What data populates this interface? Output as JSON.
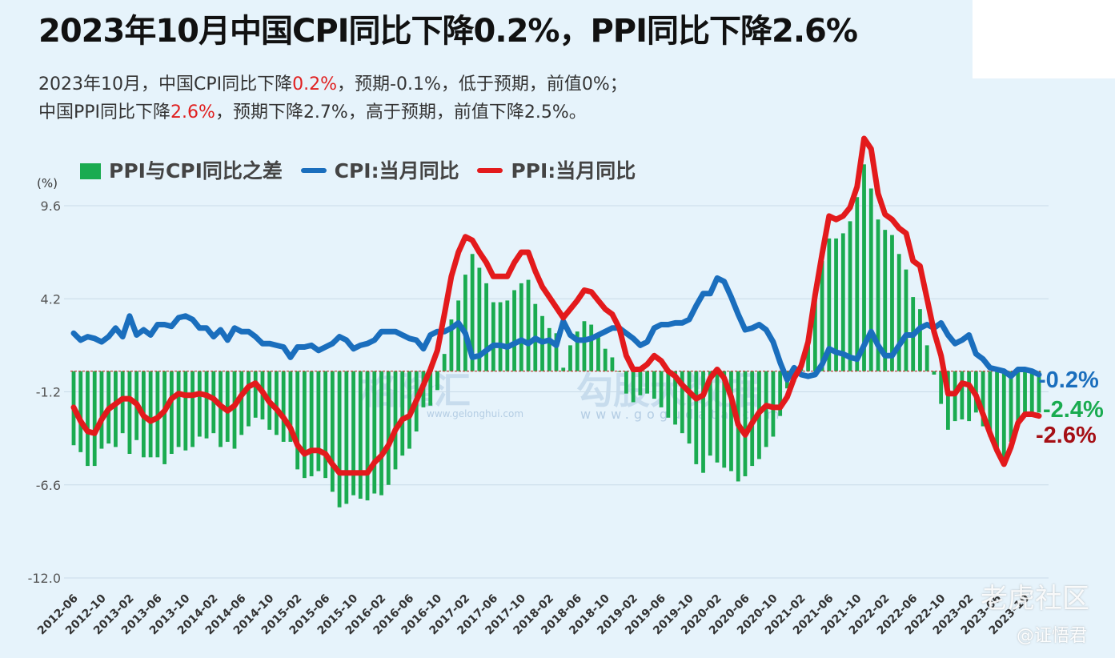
{
  "header": {
    "title": "2023年10月中国CPI同比下降0.2%，PPI同比下降2.6%",
    "line1_a": "2023年10月，中国CPI同比下降",
    "line1_b": "0.2%",
    "line1_c": "，预期-0.1%，低于预期，前值0%；",
    "line2_a": "中国PPI同比下降",
    "line2_b": "2.6%",
    "line2_c": "，预期下降2.7%，高于预期，前值下降2.5%。"
  },
  "legend": {
    "diff": "PPI与CPI同比之差",
    "cpi": "CPI:当月同比",
    "ppi": "PPI:当月同比"
  },
  "watermarks": {
    "gelonghui": "格隆汇",
    "gelonghui_url": "www.gelonghui.com",
    "gogudata": "勾股大数据",
    "gogudata_url": "www.gogudata.com",
    "tiger": "老虎社区",
    "author": "@证悟君"
  },
  "colors": {
    "cpi": "#1a6ebd",
    "ppi": "#e31a1c",
    "diff": "#1aab50",
    "grid": "#c9dbe8",
    "end_diff": "#1aab50",
    "end_ppi": "#a50f15"
  },
  "chart_data": {
    "type": "bar+line",
    "ylabel": "(%)",
    "ylim": [
      -12.0,
      9.6
    ],
    "yticks": [
      "9.6",
      "4.2",
      "-1.2",
      "-6.6",
      "-12.0"
    ],
    "ytick_values": [
      9.6,
      4.2,
      -1.2,
      -6.6,
      -12.0
    ],
    "xtick_labels": [
      "2012-06",
      "2012-10",
      "2013-02",
      "2013-06",
      "2013-10",
      "2014-02",
      "2014-06",
      "2014-10",
      "2015-02",
      "2015-06",
      "2015-10",
      "2016-02",
      "2016-06",
      "2016-10",
      "2017-02",
      "2017-06",
      "2017-10",
      "2018-02",
      "2018-06",
      "2018-10",
      "2019-02",
      "2019-06",
      "2019-10",
      "2020-02",
      "2020-06",
      "2020-10",
      "2021-02",
      "2021-06",
      "2021-10",
      "2022-02",
      "2022-06",
      "2022-10",
      "2023-02",
      "2023-06",
      "2023-10"
    ],
    "start": "2012-06",
    "end": "2023-10",
    "series": [
      {
        "name": "CPI:当月同比",
        "type": "line",
        "values": [
          2.2,
          1.8,
          2.0,
          1.9,
          1.7,
          2.0,
          2.5,
          2.0,
          3.2,
          2.1,
          2.4,
          2.1,
          2.7,
          2.7,
          2.6,
          3.1,
          3.2,
          3.0,
          2.5,
          2.5,
          2.0,
          2.4,
          1.8,
          2.5,
          2.3,
          2.3,
          2.0,
          1.6,
          1.6,
          1.5,
          1.4,
          0.8,
          1.4,
          1.4,
          1.5,
          1.2,
          1.4,
          1.6,
          2.0,
          1.8,
          1.3,
          1.5,
          1.6,
          1.8,
          2.3,
          2.3,
          2.3,
          2.1,
          1.9,
          1.8,
          1.3,
          2.1,
          2.3,
          2.3,
          2.5,
          2.8,
          2.2,
          0.8,
          0.9,
          1.2,
          1.5,
          1.5,
          1.4,
          1.6,
          1.8,
          1.6,
          1.9,
          1.7,
          1.8,
          1.5,
          2.9,
          2.1,
          1.8,
          1.8,
          1.9,
          2.1,
          2.3,
          2.5,
          2.5,
          2.2,
          1.9,
          1.5,
          1.7,
          2.5,
          2.7,
          2.7,
          2.8,
          2.8,
          3.0,
          3.8,
          4.5,
          4.5,
          5.4,
          5.2,
          4.3,
          3.3,
          2.4,
          2.5,
          2.7,
          2.4,
          1.7,
          0.5,
          -0.5,
          0.2,
          -0.2,
          -0.3,
          -0.2,
          0.4,
          1.3,
          1.1,
          1.0,
          0.8,
          0.7,
          1.5,
          2.3,
          1.5,
          0.9,
          0.9,
          1.5,
          2.1,
          2.1,
          2.5,
          2.7,
          2.5,
          2.8,
          2.1,
          1.6,
          1.8,
          2.1,
          1.0,
          0.7,
          0.2,
          0.1,
          0.0,
          -0.3,
          0.1,
          0.1,
          0.0,
          -0.2
        ]
      },
      {
        "name": "PPI:当月同比",
        "type": "line",
        "values": [
          -2.1,
          -2.9,
          -3.5,
          -3.6,
          -2.8,
          -2.2,
          -1.9,
          -1.6,
          -1.6,
          -1.9,
          -2.6,
          -2.9,
          -2.7,
          -2.3,
          -1.6,
          -1.3,
          -1.4,
          -1.4,
          -1.3,
          -1.4,
          -1.6,
          -2.0,
          -2.3,
          -2.0,
          -1.4,
          -0.9,
          -0.7,
          -1.2,
          -1.8,
          -2.2,
          -2.7,
          -3.3,
          -4.3,
          -4.8,
          -4.6,
          -4.6,
          -4.8,
          -5.4,
          -5.9,
          -5.9,
          -5.9,
          -5.9,
          -5.9,
          -5.3,
          -4.9,
          -4.3,
          -3.4,
          -2.8,
          -2.6,
          -1.7,
          -0.8,
          0.1,
          1.2,
          3.3,
          5.5,
          6.9,
          7.8,
          7.6,
          6.9,
          6.3,
          5.5,
          5.5,
          5.5,
          6.3,
          6.9,
          6.9,
          5.8,
          4.9,
          4.3,
          3.7,
          3.1,
          3.6,
          4.1,
          4.7,
          4.6,
          4.1,
          3.6,
          3.3,
          2.5,
          0.9,
          0.1,
          0.1,
          0.4,
          0.9,
          0.6,
          0.0,
          -0.3,
          -0.8,
          -1.2,
          -1.6,
          -1.4,
          -0.4,
          0.1,
          -0.4,
          -1.5,
          -3.1,
          -3.7,
          -3.0,
          -2.4,
          -2.0,
          -2.1,
          -2.1,
          -1.5,
          -0.4,
          0.3,
          1.7,
          4.4,
          6.8,
          9.0,
          8.8,
          9.0,
          9.5,
          10.7,
          13.5,
          12.9,
          10.3,
          9.1,
          8.8,
          8.3,
          8.0,
          6.4,
          6.1,
          4.2,
          2.3,
          0.9,
          -1.3,
          -1.3,
          -0.7,
          -0.8,
          -1.4,
          -2.5,
          -3.6,
          -4.6,
          -5.4,
          -4.4,
          -3.0,
          -2.5,
          -2.5,
          -2.6
        ]
      },
      {
        "name": "PPI与CPI同比之差",
        "type": "bar",
        "values": [
          -4.3,
          -4.7,
          -5.5,
          -5.5,
          -4.5,
          -4.2,
          -4.4,
          -3.6,
          -4.8,
          -4.0,
          -5.0,
          -5.0,
          -5.0,
          -5.4,
          -4.8,
          -4.4,
          -4.6,
          -4.4,
          -3.8,
          -3.9,
          -3.6,
          -4.4,
          -4.1,
          -4.5,
          -3.7,
          -3.2,
          -2.7,
          -2.8,
          -3.4,
          -3.7,
          -4.1,
          -4.1,
          -5.7,
          -6.2,
          -6.1,
          -5.8,
          -6.2,
          -7.0,
          -7.9,
          -7.7,
          -7.2,
          -7.4,
          -7.5,
          -7.1,
          -7.2,
          -6.6,
          -5.7,
          -4.9,
          -4.5,
          -3.5,
          -2.1,
          -2.0,
          -1.1,
          1.0,
          3.0,
          4.1,
          5.6,
          6.8,
          6.0,
          5.1,
          4.0,
          4.0,
          4.1,
          4.7,
          5.1,
          5.3,
          3.9,
          3.2,
          2.5,
          2.2,
          0.2,
          1.5,
          2.3,
          2.9,
          2.7,
          2.0,
          1.3,
          0.8,
          0.0,
          -1.3,
          -1.8,
          -1.4,
          -1.3,
          -1.6,
          -2.1,
          -2.7,
          -3.1,
          -3.6,
          -4.2,
          -5.4,
          -5.9,
          -4.9,
          -5.3,
          -5.6,
          -5.8,
          -6.4,
          -6.1,
          -5.5,
          -5.1,
          -4.4,
          -3.8,
          -2.6,
          -1.0,
          -0.6,
          0.5,
          2.0,
          4.5,
          6.4,
          7.7,
          7.7,
          8.0,
          8.7,
          10.1,
          12.0,
          10.6,
          8.8,
          8.2,
          7.9,
          6.8,
          5.9,
          4.3,
          3.6,
          1.5,
          -0.2,
          -1.9,
          -3.4,
          -2.9,
          -2.8,
          -2.9,
          -2.4,
          -3.2,
          -3.8,
          -4.7,
          -5.4,
          -4.1,
          -3.1,
          -2.6,
          -2.5,
          -2.4
        ]
      }
    ],
    "end_labels": {
      "cpi": "-0.2%",
      "diff": "-2.4%",
      "ppi": "-2.6%"
    }
  }
}
